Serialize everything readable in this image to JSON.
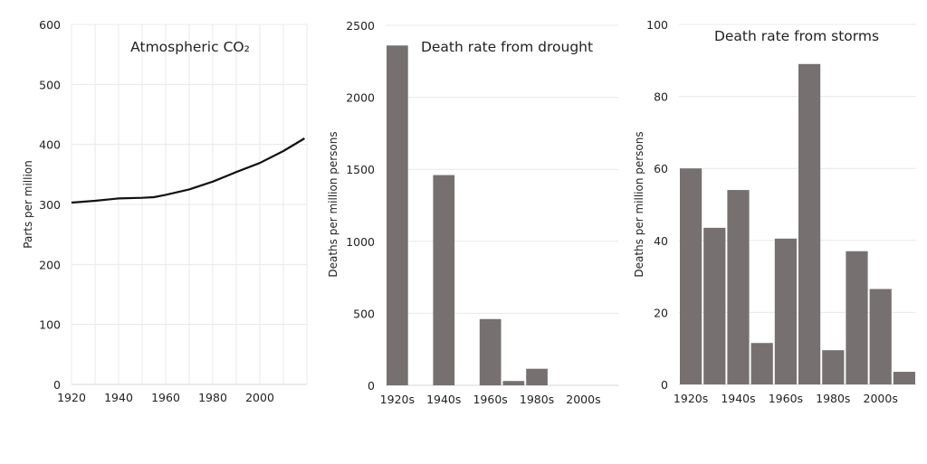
{
  "chart_data": [
    {
      "type": "line",
      "title": "Atmospheric CO₂",
      "ylabel": "Parts per million",
      "xlabel": "",
      "xlim": [
        1920,
        2020
      ],
      "ylim": [
        0,
        600
      ],
      "xticks": [
        1920,
        1940,
        1960,
        1980,
        2000
      ],
      "yticks": [
        0,
        100,
        200,
        300,
        400,
        500,
        600
      ],
      "grid": {
        "horizontal": true,
        "vertical": true
      },
      "line_color": "#111111",
      "x": [
        1920,
        1930,
        1940,
        1950,
        1955,
        1960,
        1970,
        1980,
        1990,
        2000,
        2010,
        2019
      ],
      "y": [
        303,
        306,
        310,
        311,
        312,
        316,
        325,
        338,
        354,
        369,
        389,
        410
      ]
    },
    {
      "type": "bar",
      "title": "Death rate from drought",
      "ylabel": "Deaths per million persons",
      "xlabel": "",
      "ylim": [
        0,
        2500
      ],
      "yticks": [
        0,
        500,
        1000,
        1500,
        2000,
        2500
      ],
      "grid": {
        "horizontal": true,
        "vertical": false
      },
      "bar_color": "#767070",
      "categories": [
        "1920s",
        "1930s",
        "1940s",
        "1950s",
        "1960s",
        "1970s",
        "1980s",
        "1990s",
        "2000s",
        "2010s"
      ],
      "xtick_labels": [
        "1920s",
        "",
        "1940s",
        "",
        "1960s",
        "",
        "1980s",
        "",
        "2000s",
        ""
      ],
      "values": [
        2360,
        0,
        1460,
        0,
        460,
        30,
        115,
        0,
        0,
        0
      ]
    },
    {
      "type": "bar",
      "title": "Death rate from storms",
      "ylabel": "Deaths per million persons",
      "xlabel": "",
      "ylim": [
        0,
        100
      ],
      "yticks": [
        0,
        20,
        40,
        60,
        80,
        100
      ],
      "grid": {
        "horizontal": true,
        "vertical": false
      },
      "bar_color": "#767070",
      "categories": [
        "1920s",
        "1930s",
        "1940s",
        "1950s",
        "1960s",
        "1970s",
        "1980s",
        "1990s",
        "2000s",
        "2010s"
      ],
      "xtick_labels": [
        "1920s",
        "",
        "1940s",
        "",
        "1960s",
        "",
        "1980s",
        "",
        "2000s",
        ""
      ],
      "values": [
        60,
        43.5,
        54,
        11.5,
        40.5,
        89,
        9.5,
        37,
        26.5,
        3.5
      ]
    }
  ]
}
